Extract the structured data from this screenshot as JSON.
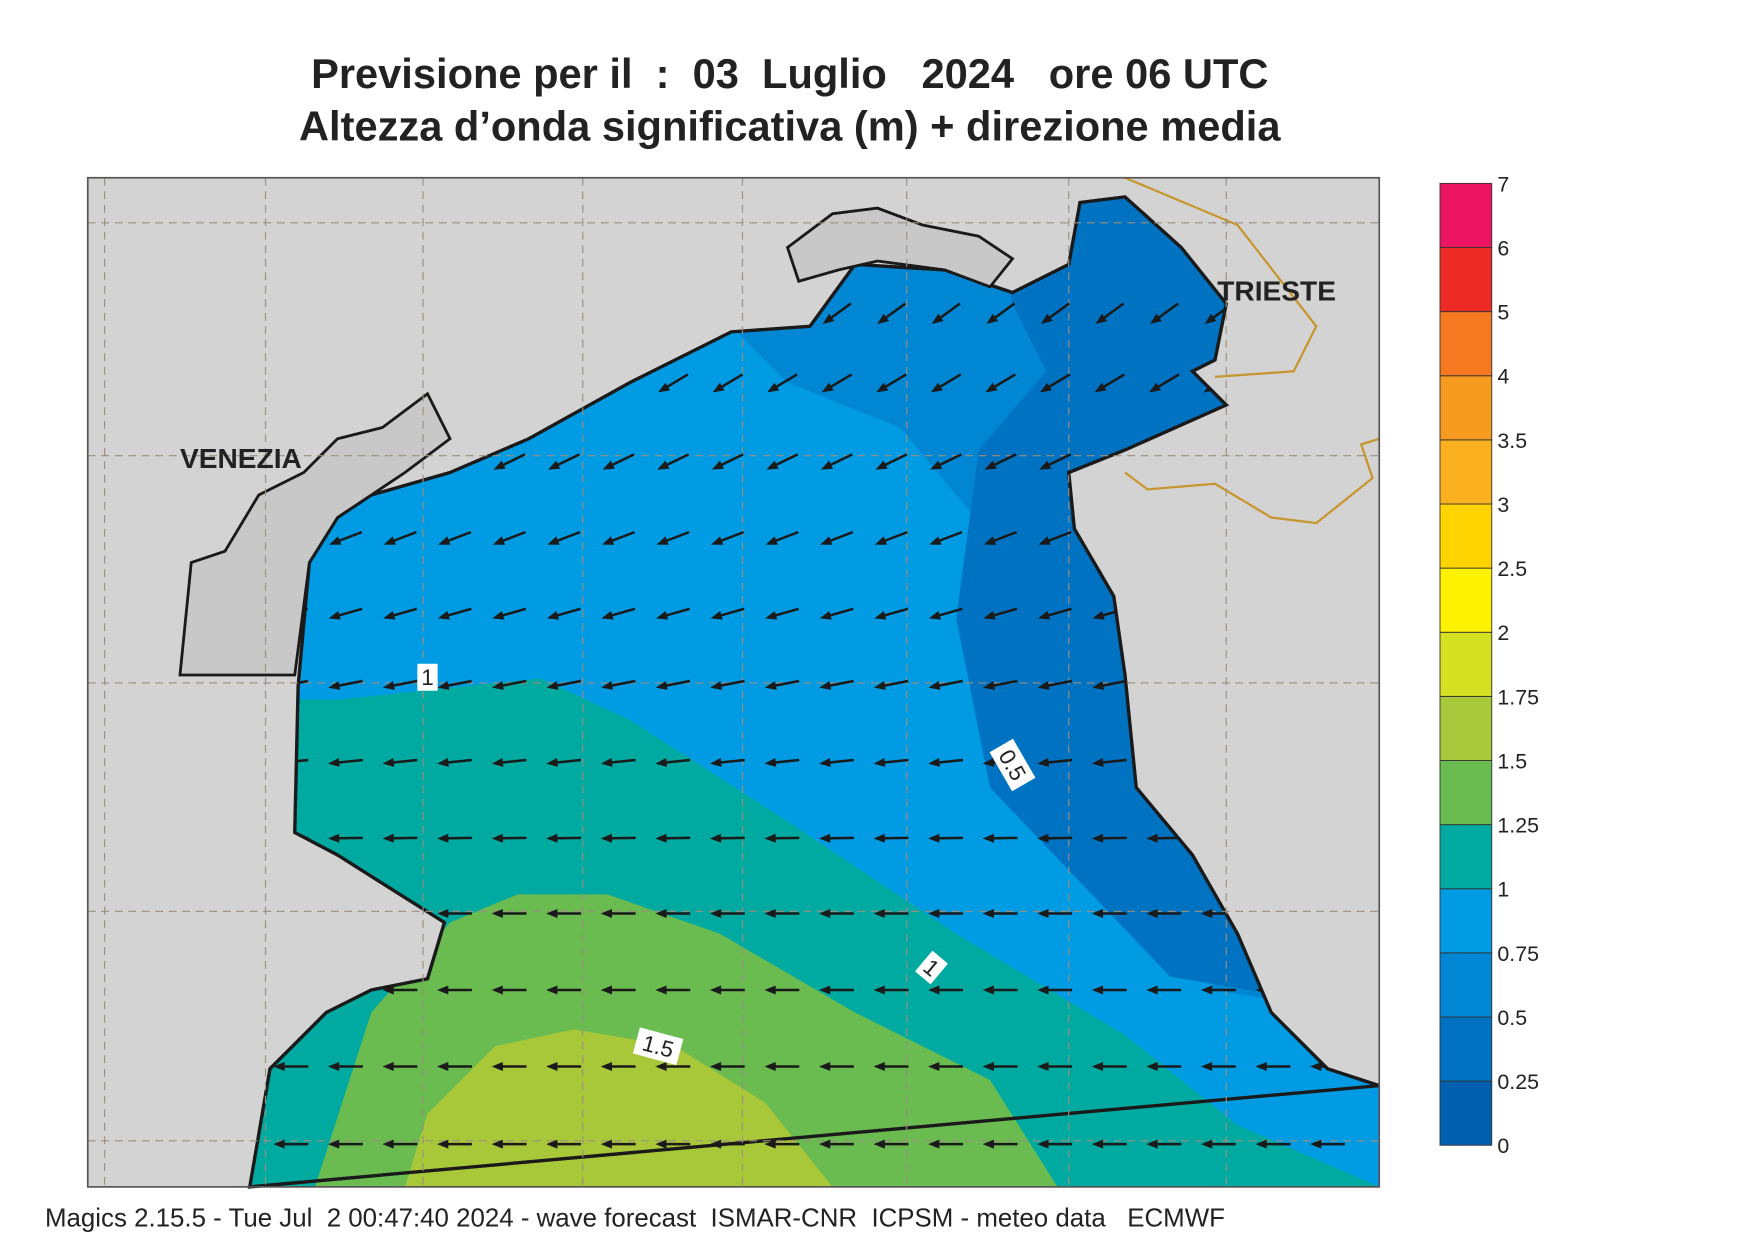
{
  "title_line1": "Previsione per il  :  03  Luglio   2024   ore 06 UTC",
  "title_line2": "Altezza d’onda significativa (m) + direzione media",
  "cities": [
    "VENEZIA",
    "TRIESTE"
  ],
  "contour_labels": [
    1,
    0.5,
    1,
    1.5
  ],
  "colorbar": {
    "levels": [
      0,
      0.25,
      0.5,
      0.75,
      1,
      1.25,
      1.5,
      1.75,
      2,
      2.5,
      3,
      3.5,
      4,
      5,
      6,
      7
    ],
    "colors": [
      "#0060b0",
      "#0072c2",
      "#0086d2",
      "#009be2",
      "#00aaa0",
      "#6abb50",
      "#a8c83a",
      "#d4e020",
      "#fff200",
      "#ffd400",
      "#fbb020",
      "#f79a20",
      "#f47920",
      "#ee2a24",
      "#ec1561"
    ]
  },
  "footer": "Magics 2.15.5 - Tue Jul  2 00:47:40 2024 - wave forecast  ISMAR-CNR  ICPSM - meteo data   ECMWF"
}
